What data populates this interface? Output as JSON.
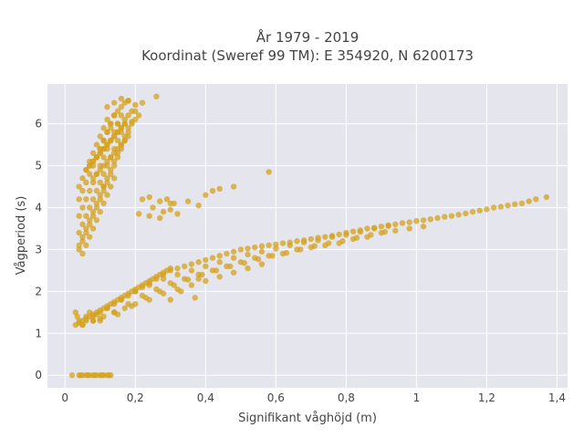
{
  "chart_data": {
    "type": "scatter",
    "title_line1": "År 1979 - 2019",
    "title_line2": "Koordinat (Sweref 99 TM): E 354920, N 6200173",
    "xlabel": "Signifikant våghöjd (m)",
    "ylabel": "Vågperiod (s)",
    "xlim": [
      -0.05,
      1.43
    ],
    "ylim": [
      -0.3,
      6.95
    ],
    "xticks": [
      0,
      0.2,
      0.4,
      0.6,
      0.8,
      1,
      1.2,
      1.4
    ],
    "xtick_labels": [
      "0",
      "0,2",
      "0,4",
      "0,6",
      "0,8",
      "1",
      "1,2",
      "1,4"
    ],
    "yticks": [
      0,
      1,
      2,
      3,
      4,
      5,
      6
    ],
    "ytick_labels": [
      "0",
      "1",
      "2",
      "3",
      "4",
      "5",
      "6"
    ],
    "grid": true,
    "background": "#e5e5ee",
    "marker_color": "#d4a11c",
    "series": [
      {
        "x": [
          0.02,
          0.04,
          0.05,
          0.06,
          0.07,
          0.08,
          0.09,
          0.1,
          0.11,
          0.12,
          0.13,
          0.045,
          0.065,
          0.085,
          0.105,
          0.125,
          0.03,
          0.035,
          0.04,
          0.05,
          0.06,
          0.07,
          0.08,
          0.09,
          0.1,
          0.03,
          0.04,
          0.05,
          0.06,
          0.07,
          0.08,
          0.09,
          0.1,
          0.11,
          0.12,
          0.13,
          0.14,
          0.15,
          0.16,
          0.17,
          0.18,
          0.19,
          0.2,
          0.21,
          0.22,
          0.23,
          0.24,
          0.25,
          0.26,
          0.27,
          0.28,
          0.29,
          0.3,
          0.06,
          0.08,
          0.1,
          0.12,
          0.14,
          0.16,
          0.18,
          0.2,
          0.22,
          0.24,
          0.26,
          0.28,
          0.3,
          0.32,
          0.34,
          0.36,
          0.38,
          0.4,
          0.42,
          0.44,
          0.46,
          0.48,
          0.5,
          0.52,
          0.54,
          0.56,
          0.58,
          0.6,
          0.62,
          0.64,
          0.66,
          0.68,
          0.7,
          0.72,
          0.74,
          0.76,
          0.78,
          0.8,
          0.82,
          0.84,
          0.86,
          0.88,
          0.9,
          0.92,
          0.94,
          0.96,
          0.98,
          1.0,
          1.02,
          1.04,
          1.06,
          1.08,
          1.1,
          1.12,
          1.14,
          1.16,
          1.18,
          1.2,
          1.22,
          1.24,
          1.26,
          1.28,
          1.3,
          1.32,
          1.34,
          1.37,
          0.1,
          0.14,
          0.18,
          0.22,
          0.26,
          0.3,
          0.34,
          0.38,
          0.42,
          0.46,
          0.5,
          0.54,
          0.58,
          0.62,
          0.66,
          0.7,
          0.74,
          0.78,
          0.82,
          0.86,
          0.9,
          0.94,
          0.98,
          1.02,
          0.12,
          0.16,
          0.2,
          0.24,
          0.28,
          0.32,
          0.36,
          0.4,
          0.44,
          0.48,
          0.52,
          0.56,
          0.6,
          0.64,
          0.68,
          0.72,
          0.76,
          0.8,
          0.84,
          0.88,
          0.92,
          0.15,
          0.19,
          0.23,
          0.27,
          0.31,
          0.35,
          0.39,
          0.43,
          0.47,
          0.51,
          0.55,
          0.59,
          0.63,
          0.67,
          0.71,
          0.75,
          0.79,
          0.83,
          0.87,
          0.91,
          0.05,
          0.08,
          0.11,
          0.14,
          0.17,
          0.2,
          0.24,
          0.28,
          0.32,
          0.36,
          0.4,
          0.44,
          0.48,
          0.52,
          0.56,
          0.22,
          0.25,
          0.28,
          0.3,
          0.32,
          0.35,
          0.38,
          0.4,
          0.42,
          0.44,
          0.48,
          0.21,
          0.24,
          0.27,
          0.29,
          0.31,
          0.24,
          0.27,
          0.3,
          0.3,
          0.37,
          0.33,
          0.38,
          0.58,
          0.04,
          0.05,
          0.06,
          0.07,
          0.08,
          0.09,
          0.1,
          0.11,
          0.12,
          0.13,
          0.14,
          0.15,
          0.16,
          0.17,
          0.18,
          0.19,
          0.2,
          0.21,
          0.04,
          0.05,
          0.06,
          0.07,
          0.08,
          0.09,
          0.1,
          0.11,
          0.12,
          0.13,
          0.14,
          0.15,
          0.16,
          0.17,
          0.18,
          0.19,
          0.2,
          0.04,
          0.05,
          0.06,
          0.07,
          0.08,
          0.09,
          0.1,
          0.11,
          0.12,
          0.13,
          0.14,
          0.15,
          0.16,
          0.17,
          0.18,
          0.04,
          0.05,
          0.06,
          0.07,
          0.08,
          0.09,
          0.1,
          0.11,
          0.12,
          0.13,
          0.14,
          0.15,
          0.16,
          0.04,
          0.05,
          0.06,
          0.07,
          0.08,
          0.09,
          0.1,
          0.11,
          0.12,
          0.13,
          0.14,
          0.04,
          0.05,
          0.06,
          0.07,
          0.08,
          0.09,
          0.1,
          0.11,
          0.12,
          0.05,
          0.06,
          0.07,
          0.08,
          0.09,
          0.1,
          0.11,
          0.12,
          0.13,
          0.14,
          0.06,
          0.07,
          0.08,
          0.09,
          0.1,
          0.11,
          0.12,
          0.13,
          0.14,
          0.15,
          0.16,
          0.07,
          0.08,
          0.09,
          0.1,
          0.11,
          0.12,
          0.13,
          0.14,
          0.15,
          0.16,
          0.17,
          0.08,
          0.09,
          0.1,
          0.11,
          0.12,
          0.13,
          0.14,
          0.15,
          0.16,
          0.17,
          0.18,
          0.1,
          0.11,
          0.12,
          0.13,
          0.14,
          0.15,
          0.16,
          0.17,
          0.18,
          0.12,
          0.14,
          0.16,
          0.18,
          0.2,
          0.22,
          0.26,
          0.19,
          0.17,
          0.15,
          0.13,
          0.11
        ],
        "y": [
          0,
          0,
          0,
          0,
          0,
          0,
          0,
          0,
          0,
          0,
          0,
          0,
          0,
          0,
          0,
          0,
          1.5,
          1.4,
          1.3,
          1.2,
          1.4,
          1.5,
          1.3,
          1.45,
          1.35,
          1.2,
          1.25,
          1.3,
          1.35,
          1.4,
          1.45,
          1.5,
          1.55,
          1.6,
          1.65,
          1.7,
          1.75,
          1.8,
          1.85,
          1.9,
          1.95,
          2.0,
          2.05,
          2.1,
          2.15,
          2.2,
          2.25,
          2.3,
          2.35,
          2.4,
          2.45,
          2.5,
          2.55,
          1.3,
          1.4,
          1.5,
          1.6,
          1.7,
          1.8,
          1.9,
          2.0,
          2.1,
          2.2,
          2.3,
          2.4,
          2.5,
          2.55,
          2.6,
          2.65,
          2.7,
          2.75,
          2.8,
          2.85,
          2.9,
          2.95,
          3.0,
          3.02,
          3.05,
          3.08,
          3.1,
          3.12,
          3.15,
          3.17,
          3.2,
          3.22,
          3.25,
          3.28,
          3.3,
          3.33,
          3.36,
          3.4,
          3.43,
          3.46,
          3.5,
          3.52,
          3.55,
          3.58,
          3.6,
          3.63,
          3.65,
          3.68,
          3.7,
          3.72,
          3.75,
          3.78,
          3.8,
          3.83,
          3.86,
          3.9,
          3.93,
          3.96,
          4.0,
          4.02,
          4.05,
          4.08,
          4.1,
          4.15,
          4.2,
          4.25,
          1.3,
          1.5,
          1.7,
          1.9,
          2.05,
          2.2,
          2.3,
          2.4,
          2.5,
          2.6,
          2.7,
          2.8,
          2.85,
          2.9,
          3.0,
          3.05,
          3.1,
          3.15,
          3.25,
          3.3,
          3.4,
          3.45,
          3.5,
          3.55,
          1.6,
          1.8,
          2.0,
          2.15,
          2.3,
          2.4,
          2.5,
          2.6,
          2.7,
          2.8,
          2.88,
          2.95,
          3.02,
          3.1,
          3.17,
          3.22,
          3.3,
          3.35,
          3.42,
          3.5,
          3.56,
          1.45,
          1.65,
          1.85,
          2.0,
          2.15,
          2.28,
          2.4,
          2.5,
          2.6,
          2.68,
          2.77,
          2.85,
          2.92,
          3.0,
          3.08,
          3.15,
          3.2,
          3.28,
          3.35,
          3.42,
          1.2,
          1.3,
          1.4,
          1.5,
          1.6,
          1.7,
          1.8,
          1.95,
          2.05,
          2.15,
          2.25,
          2.35,
          2.45,
          2.55,
          2.65,
          4.2,
          4.0,
          3.9,
          4.1,
          3.85,
          4.15,
          4.05,
          4.3,
          4.4,
          4.45,
          4.5,
          3.85,
          3.8,
          3.75,
          4.2,
          4.1,
          4.25,
          4.15,
          3.95,
          1.8,
          1.85,
          2.0,
          2.3,
          4.85,
          3.0,
          3.2,
          3.4,
          3.6,
          3.8,
          4.0,
          4.2,
          4.4,
          4.6,
          4.8,
          5.0,
          5.2,
          5.4,
          5.6,
          5.8,
          6.0,
          6.1,
          6.2,
          3.1,
          3.3,
          3.5,
          3.7,
          3.9,
          4.1,
          4.3,
          4.5,
          4.7,
          4.9,
          5.1,
          5.3,
          5.5,
          5.7,
          5.9,
          6.05,
          6.3,
          3.4,
          3.6,
          3.8,
          4.0,
          4.2,
          4.4,
          4.6,
          4.8,
          5.0,
          5.2,
          5.4,
          5.6,
          5.8,
          6.0,
          6.2,
          3.8,
          4.0,
          4.2,
          4.4,
          4.6,
          4.8,
          5.0,
          5.2,
          5.4,
          5.6,
          5.8,
          6.0,
          6.2,
          4.2,
          4.4,
          4.6,
          4.8,
          5.0,
          5.2,
          5.4,
          5.6,
          5.8,
          6.0,
          6.2,
          4.5,
          4.7,
          4.9,
          5.1,
          5.3,
          5.5,
          5.7,
          5.9,
          6.1,
          2.9,
          3.1,
          3.3,
          3.5,
          3.7,
          3.9,
          4.1,
          4.3,
          4.5,
          4.7,
          4.9,
          5.0,
          5.1,
          5.2,
          5.3,
          5.4,
          5.5,
          5.6,
          5.7,
          5.8,
          5.9,
          5.0,
          5.1,
          5.2,
          5.3,
          5.4,
          5.5,
          5.6,
          5.7,
          5.8,
          5.9,
          6.0,
          4.7,
          4.8,
          4.9,
          5.0,
          5.1,
          5.2,
          5.3,
          5.4,
          5.5,
          5.6,
          5.7,
          5.4,
          5.6,
          5.8,
          6.0,
          6.2,
          6.3,
          6.4,
          6.5,
          6.55,
          6.4,
          6.5,
          6.6,
          6.55,
          6.45,
          6.5,
          6.65,
          6.3,
          6.1,
          6.0,
          5.9,
          4.5
        ]
      }
    ]
  }
}
